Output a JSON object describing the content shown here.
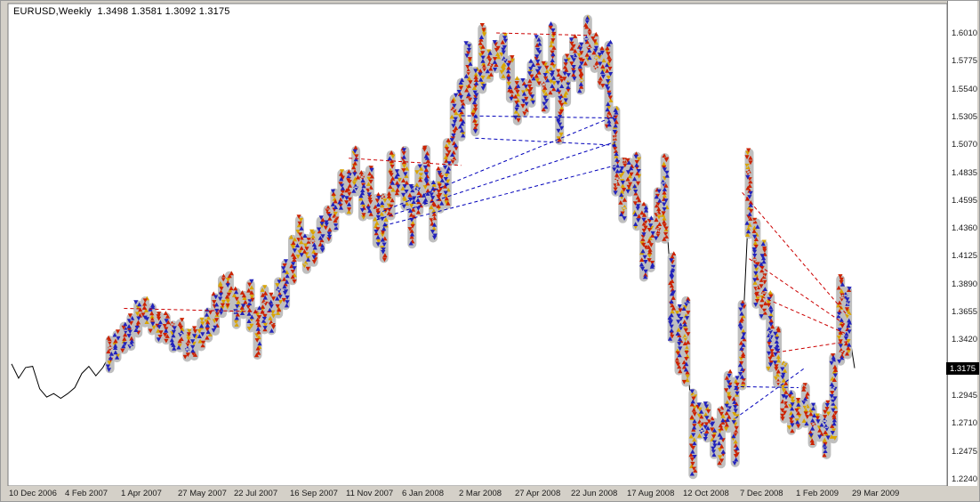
{
  "header": {
    "ohlc_label": "EURUSD,Weekly  1.3498 1.3581 1.3092 1.3175"
  },
  "chart_data": {
    "type": "line",
    "title": "EURUSD,Weekly",
    "symbol": "EURUSD",
    "timeframe": "Weekly",
    "open": "1.3498",
    "high": "1.3581",
    "low": "1.3092",
    "close": "1.3175",
    "current_price": "1.3175",
    "ylim": [
      1.224,
      1.601
    ],
    "grid": "off",
    "y_axis": {
      "ticks": [
        "1.6010",
        "1.5775",
        "1.5540",
        "1.5305",
        "1.5070",
        "1.4835",
        "1.4595",
        "1.4360",
        "1.4125",
        "1.3890",
        "1.3655",
        "1.3420",
        "1.3175",
        "1.2945",
        "1.2710",
        "1.2475",
        "1.2240"
      ]
    },
    "x_axis": {
      "labels": [
        "10 Dec 2006",
        "4 Feb 2007",
        "1 Apr 2007",
        "27 May 2007",
        "22 Jul 2007",
        "16 Sep 2007",
        "11 Nov 2007",
        "6 Jan 2008",
        "2 Mar 2008",
        "27 Apr 2008",
        "22 Jun 2008",
        "17 Aug 2008",
        "12 Oct 2008",
        "7 Dec 2008",
        "1 Feb 2009",
        "29 Mar 2009"
      ],
      "weeks_per_label": 8
    },
    "closes": [
      1.321,
      1.309,
      1.318,
      1.319,
      1.3,
      1.293,
      1.296,
      1.292,
      1.296,
      1.301,
      1.313,
      1.319,
      1.311,
      1.318,
      1.329,
      1.336,
      1.343,
      1.348,
      1.359,
      1.365,
      1.359,
      1.352,
      1.351,
      1.344,
      1.345,
      1.337,
      1.338,
      1.346,
      1.354,
      1.363,
      1.378,
      1.382,
      1.368,
      1.371,
      1.37,
      1.347,
      1.367,
      1.363,
      1.377,
      1.388,
      1.409,
      1.427,
      1.414,
      1.419,
      1.43,
      1.439,
      1.451,
      1.467,
      1.466,
      1.484,
      1.463,
      1.466,
      1.442,
      1.436,
      1.472,
      1.474,
      1.478,
      1.446,
      1.468,
      1.48,
      1.45,
      1.468,
      1.482,
      1.519,
      1.536,
      1.567,
      1.543,
      1.579,
      1.573,
      1.581,
      1.581,
      1.562,
      1.543,
      1.546,
      1.558,
      1.577,
      1.555,
      1.578,
      1.538,
      1.561,
      1.579,
      1.571,
      1.594,
      1.584,
      1.571,
      1.556,
      1.501,
      1.468,
      1.479,
      1.467,
      1.424,
      1.422,
      1.447,
      1.461,
      1.377,
      1.341,
      1.34,
      1.262,
      1.273,
      1.272,
      1.258,
      1.259,
      1.289,
      1.272,
      1.337,
      1.465,
      1.406,
      1.392,
      1.348,
      1.327,
      1.297,
      1.28,
      1.279,
      1.286,
      1.269,
      1.267,
      1.265,
      1.292,
      1.358,
      1.356,
      1.3175
    ],
    "arrow_start_index": 14,
    "arrow_end_index": 119,
    "trend_lines": [
      {
        "color": "red",
        "from": [
          16,
          1.368
        ],
        "to": [
          37,
          1.365
        ]
      },
      {
        "color": "red",
        "from": [
          48,
          1.495
        ],
        "to": [
          64,
          1.489
        ]
      },
      {
        "color": "red",
        "from": [
          69,
          1.601
        ],
        "to": [
          82,
          1.599
        ]
      },
      {
        "color": "red",
        "from": [
          104,
          1.466
        ],
        "to": [
          119,
          1.362
        ]
      },
      {
        "color": "red",
        "from": [
          105,
          1.41
        ],
        "to": [
          119,
          1.353
        ]
      },
      {
        "color": "red",
        "from": [
          106,
          1.38
        ],
        "to": [
          119,
          1.346
        ]
      },
      {
        "color": "red",
        "from": [
          108,
          1.33
        ],
        "to": [
          119,
          1.34
        ]
      },
      {
        "color": "blue",
        "from": [
          52,
          1.448
        ],
        "to": [
          86,
          1.531
        ]
      },
      {
        "color": "blue",
        "from": [
          52,
          1.443
        ],
        "to": [
          86,
          1.509
        ]
      },
      {
        "color": "blue",
        "from": [
          53,
          1.438
        ],
        "to": [
          86,
          1.489
        ]
      },
      {
        "color": "blue",
        "from": [
          64,
          1.531
        ],
        "to": [
          86,
          1.529
        ]
      },
      {
        "color": "blue",
        "from": [
          66,
          1.512
        ],
        "to": [
          86,
          1.506
        ]
      },
      {
        "color": "blue",
        "from": [
          102,
          1.302
        ],
        "to": [
          112,
          1.301
        ]
      },
      {
        "color": "blue",
        "from": [
          103,
          1.275
        ],
        "to": [
          113,
          1.318
        ]
      }
    ]
  },
  "colors": {
    "window_bg": "#d4d0c8",
    "plot_bg": "#ffffff",
    "plot_border": "#7a7a7a",
    "price_line": "#000000",
    "capsule": "#bfbfbf",
    "arrow_red": "#cc2200",
    "arrow_blue": "#2222bb",
    "arrow_gold": "#d9a400",
    "trend_red": "#cc0000",
    "trend_blue": "#0000bb",
    "price_box_bg": "#000000",
    "price_box_text": "#ffffff"
  }
}
